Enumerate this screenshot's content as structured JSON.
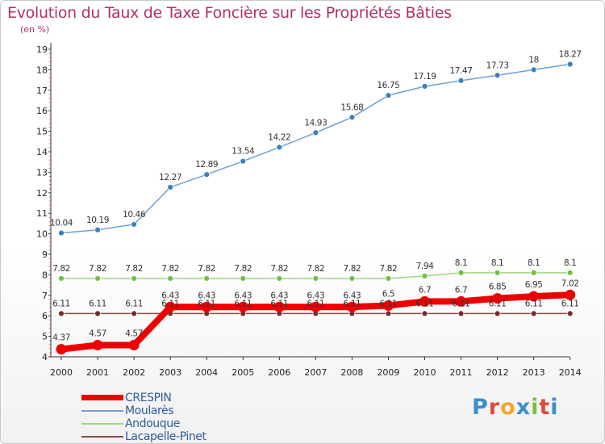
{
  "header": {
    "title": "Evolution du Taux de Taxe Foncière sur les Propriétés Bâties",
    "unit": "(en %)"
  },
  "logo": {
    "text": "Proxiti"
  },
  "chart_data": {
    "type": "line",
    "title": "Evolution du Taux de Taxe Foncière sur les Propriétés Bâties",
    "ylabel": "(en %)",
    "xlabel": "",
    "ylim": [
      4,
      19
    ],
    "grid": false,
    "legend_position": "bottom-left",
    "categories": [
      "2000",
      "2001",
      "2002",
      "2003",
      "2004",
      "2005",
      "2006",
      "2007",
      "2008",
      "2009",
      "2010",
      "2011",
      "2012",
      "2013",
      "2014"
    ],
    "yticks": [
      4,
      5,
      6,
      7,
      8,
      9,
      10,
      11,
      12,
      13,
      14,
      15,
      16,
      17,
      18,
      19
    ],
    "series": [
      {
        "name": "Moularès",
        "color": "#6fa0d0",
        "marker": "#3a7fbf",
        "emphasis": false,
        "values": [
          10.04,
          10.19,
          10.46,
          12.27,
          12.89,
          13.54,
          14.22,
          14.93,
          15.68,
          16.75,
          17.19,
          17.47,
          17.73,
          18,
          18.27
        ],
        "labels": [
          "10.04",
          "10.19",
          "10.46",
          "12.27",
          "12.89",
          "13.54",
          "14.22",
          "14.93",
          "15.68",
          "16.75",
          "17.19",
          "17.47",
          "17.73",
          "18",
          "18.27"
        ]
      },
      {
        "name": "Andouque",
        "color": "#9fd77a",
        "marker": "#6cc23a",
        "emphasis": false,
        "values": [
          7.82,
          7.82,
          7.82,
          7.82,
          7.82,
          7.82,
          7.82,
          7.82,
          7.82,
          7.82,
          7.94,
          8.1,
          8.1,
          8.1,
          8.1
        ],
        "labels": [
          "7.82",
          "7.82",
          "7.82",
          "7.82",
          "7.82",
          "7.82",
          "7.82",
          "7.82",
          "7.82",
          "7.82",
          "7.94",
          "8.1",
          "8.1",
          "8.1",
          "8.1"
        ]
      },
      {
        "name": "Lacapelle-Pinet",
        "color": "#8a4a4a",
        "marker": "#7a2a2a",
        "emphasis": false,
        "values": [
          6.11,
          6.11,
          6.11,
          6.11,
          6.11,
          6.11,
          6.11,
          6.11,
          6.11,
          6.11,
          6.11,
          6.11,
          6.11,
          6.11,
          6.11
        ],
        "labels": [
          "6.11",
          "6.11",
          "6.11",
          "6.11",
          "6.11",
          "6.11",
          "6.11",
          "6.11",
          "6.11",
          "6.11",
          "6.11",
          "6.11",
          "6.11",
          "6.11",
          "6.11"
        ]
      },
      {
        "name": "CRESPIN",
        "color": "#ee0000",
        "marker": "#ee0000",
        "emphasis": true,
        "values": [
          4.37,
          4.57,
          4.57,
          6.43,
          6.43,
          6.43,
          6.43,
          6.43,
          6.43,
          6.5,
          6.7,
          6.7,
          6.85,
          6.95,
          7.02
        ],
        "labels": [
          "4.37",
          "4.57",
          "4.57",
          "6.43",
          "6.43",
          "6.43",
          "6.43",
          "6.43",
          "6.43",
          "6.5",
          "6.7",
          "6.7",
          "6.85",
          "6.95",
          "7.02"
        ]
      }
    ],
    "legend": [
      "CRESPIN",
      "Moularès",
      "Andouque",
      "Lacapelle-Pinet"
    ]
  }
}
